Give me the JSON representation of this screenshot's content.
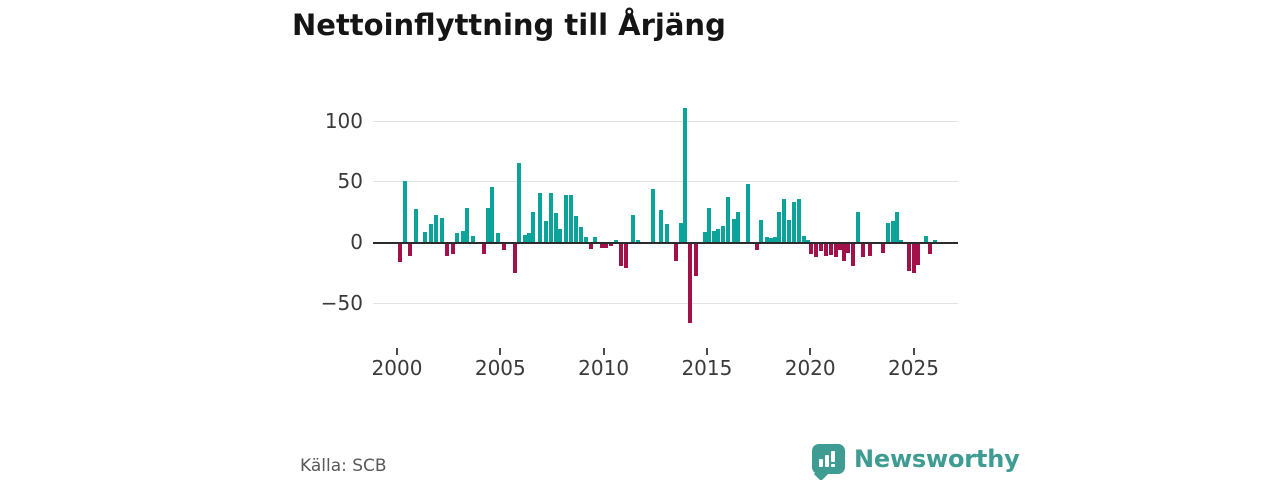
{
  "title": "Nettoinflyttning till Årjäng",
  "source": "Källa: SCB",
  "brand": {
    "name": "Newsworthy",
    "color": "#3e9c92",
    "icon": "bar-chart-speech-bubble-icon"
  },
  "colors": {
    "positive_bar": "#0ba39a",
    "negative_bar": "#a3114b",
    "gridline": "#e3e3e3",
    "zero_axis": "#2b2b2b",
    "text": "#3a3a3a"
  },
  "chart_data": {
    "type": "bar",
    "title": "Nettoinflyttning till Årjäng",
    "xlabel": "",
    "ylabel": "",
    "x_unit": "year (decimal; one bar per quarter)",
    "y_gridlines": [
      100,
      50,
      0,
      -50
    ],
    "y_tick_labels": [
      "100",
      "50",
      "0",
      "−50"
    ],
    "x_ticks": [
      2000,
      2005,
      2010,
      2015,
      2020,
      2025
    ],
    "ylim": [
      -75,
      115
    ],
    "xlim": [
      1999.3,
      2027.2
    ],
    "legend": "none",
    "points": [
      [
        2000.15,
        -15
      ],
      [
        2000.4,
        50
      ],
      [
        2000.65,
        -10
      ],
      [
        2000.9,
        27
      ],
      [
        2001.37,
        8
      ],
      [
        2001.66,
        15
      ],
      [
        2001.9,
        22
      ],
      [
        2002.2,
        20
      ],
      [
        2002.4,
        -10
      ],
      [
        2002.7,
        -8
      ],
      [
        2002.9,
        7
      ],
      [
        2003.2,
        9
      ],
      [
        2003.4,
        28
      ],
      [
        2003.7,
        5
      ],
      [
        2004.2,
        -8
      ],
      [
        2004.4,
        28
      ],
      [
        2004.6,
        45
      ],
      [
        2004.9,
        7
      ],
      [
        2005.2,
        -5
      ],
      [
        2005.7,
        -24
      ],
      [
        2005.9,
        65
      ],
      [
        2006.2,
        6
      ],
      [
        2006.4,
        7
      ],
      [
        2006.6,
        25
      ],
      [
        2006.9,
        40
      ],
      [
        2007.2,
        17
      ],
      [
        2007.45,
        40
      ],
      [
        2007.7,
        24
      ],
      [
        2007.9,
        11
      ],
      [
        2008.2,
        39
      ],
      [
        2008.4,
        39
      ],
      [
        2008.65,
        21
      ],
      [
        2008.9,
        12
      ],
      [
        2009.15,
        4
      ],
      [
        2009.4,
        -4
      ],
      [
        2009.6,
        4
      ],
      [
        2009.9,
        -3
      ],
      [
        2010.1,
        -3
      ],
      [
        2010.36,
        -2
      ],
      [
        2010.6,
        2
      ],
      [
        2010.84,
        -18
      ],
      [
        2011.1,
        -20
      ],
      [
        2011.4,
        22
      ],
      [
        2011.66,
        2
      ],
      [
        2012.4,
        44
      ],
      [
        2012.8,
        26
      ],
      [
        2013.05,
        15
      ],
      [
        2013.5,
        -14
      ],
      [
        2013.75,
        16
      ],
      [
        2013.95,
        110
      ],
      [
        2014.2,
        -65
      ],
      [
        2014.45,
        -26
      ],
      [
        2014.9,
        8
      ],
      [
        2015.1,
        28
      ],
      [
        2015.35,
        9
      ],
      [
        2015.55,
        11
      ],
      [
        2015.8,
        13
      ],
      [
        2016.04,
        37
      ],
      [
        2016.3,
        19
      ],
      [
        2016.5,
        25
      ],
      [
        2017.0,
        48
      ],
      [
        2017.43,
        -5
      ],
      [
        2017.64,
        18
      ],
      [
        2017.9,
        4
      ],
      [
        2018.1,
        3
      ],
      [
        2018.3,
        4
      ],
      [
        2018.5,
        25
      ],
      [
        2018.74,
        35
      ],
      [
        2018.97,
        18
      ],
      [
        2019.2,
        33
      ],
      [
        2019.45,
        35
      ],
      [
        2019.68,
        5
      ],
      [
        2019.9,
        2
      ],
      [
        2020.06,
        -8
      ],
      [
        2020.3,
        -11
      ],
      [
        2020.5,
        -6
      ],
      [
        2020.77,
        -10
      ],
      [
        2021.0,
        -9
      ],
      [
        2021.23,
        -11
      ],
      [
        2021.45,
        -5
      ],
      [
        2021.63,
        -14
      ],
      [
        2021.83,
        -7
      ],
      [
        2022.05,
        -18
      ],
      [
        2022.3,
        25
      ],
      [
        2022.54,
        -11
      ],
      [
        2022.88,
        -10
      ],
      [
        2023.5,
        -7
      ],
      [
        2023.77,
        16
      ],
      [
        2024.0,
        17
      ],
      [
        2024.2,
        25
      ],
      [
        2024.4,
        2
      ],
      [
        2024.77,
        -22
      ],
      [
        2025.0,
        -24
      ],
      [
        2025.2,
        -17
      ],
      [
        2025.6,
        5
      ],
      [
        2025.8,
        -8
      ],
      [
        2026.05,
        2
      ]
    ]
  }
}
